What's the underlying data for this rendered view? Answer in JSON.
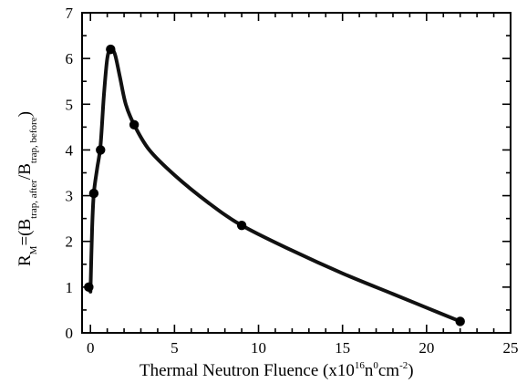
{
  "chart_data": {
    "type": "scatter",
    "x_axis": {
      "label_pre": "Thermal Neutron Fluence (x10",
      "label_sup1": "16",
      "label_mid1": "n",
      "label_sup2": "0",
      "label_mid2": "cm",
      "label_sup3": "-2",
      "label_post": ")",
      "range": [
        -0.5,
        25
      ],
      "ticks": [
        0,
        5,
        10,
        15,
        20,
        25
      ]
    },
    "y_axis": {
      "label_R": "R",
      "label_M": "M",
      "label_mid": "=(B",
      "label_sub1": "trap, after",
      "label_slash": "/B",
      "label_sub2": "trap, before",
      "label_post": ")",
      "range": [
        0,
        7
      ],
      "ticks": [
        0,
        1,
        2,
        3,
        4,
        5,
        6,
        7
      ]
    },
    "points": [
      {
        "x": -0.1,
        "y": 1.0
      },
      {
        "x": 0.2,
        "y": 3.05
      },
      {
        "x": 0.6,
        "y": 4.0
      },
      {
        "x": 1.2,
        "y": 6.2
      },
      {
        "x": 2.6,
        "y": 4.55
      },
      {
        "x": 9.0,
        "y": 2.35
      },
      {
        "x": 22.0,
        "y": 0.25
      }
    ],
    "curve": [
      {
        "x": 0.0,
        "y": 0.9
      },
      {
        "x": 0.1,
        "y": 2.3
      },
      {
        "x": 0.2,
        "y": 3.05
      },
      {
        "x": 0.4,
        "y": 3.6
      },
      {
        "x": 0.6,
        "y": 4.1
      },
      {
        "x": 0.8,
        "y": 5.2
      },
      {
        "x": 1.0,
        "y": 6.0
      },
      {
        "x": 1.2,
        "y": 6.2
      },
      {
        "x": 1.45,
        "y": 6.1
      },
      {
        "x": 1.75,
        "y": 5.6
      },
      {
        "x": 2.1,
        "y": 5.0
      },
      {
        "x": 2.6,
        "y": 4.55
      },
      {
        "x": 3.5,
        "y": 4.0
      },
      {
        "x": 5.0,
        "y": 3.45
      },
      {
        "x": 7.0,
        "y": 2.85
      },
      {
        "x": 9.0,
        "y": 2.35
      },
      {
        "x": 12.0,
        "y": 1.8
      },
      {
        "x": 15.0,
        "y": 1.3
      },
      {
        "x": 18.0,
        "y": 0.85
      },
      {
        "x": 20.0,
        "y": 0.55
      },
      {
        "x": 22.0,
        "y": 0.25
      }
    ]
  }
}
